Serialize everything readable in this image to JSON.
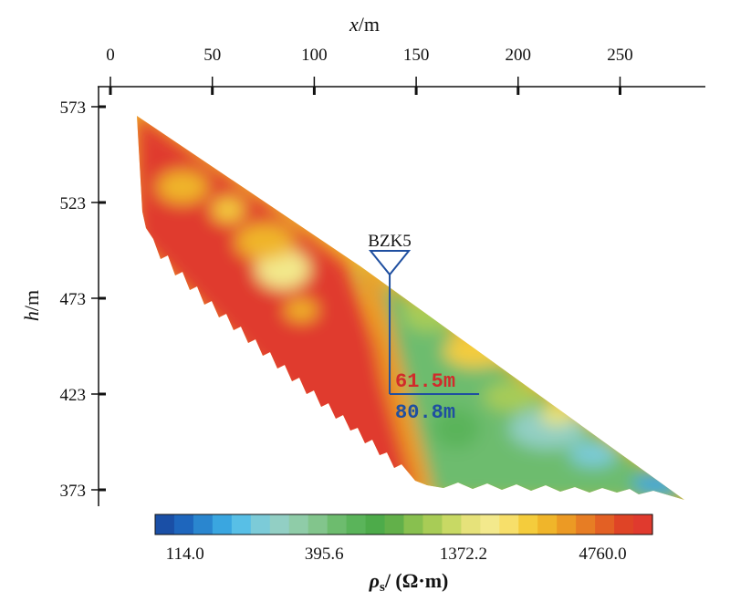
{
  "chart_data": {
    "type": "heatmap",
    "xlabel_var": "x",
    "xlabel_unit": "/m",
    "ylabel_var": "h",
    "ylabel_unit": "/m",
    "x_ticks": [
      0,
      50,
      100,
      150,
      200,
      250
    ],
    "y_ticks": [
      573,
      523,
      473,
      423,
      373
    ],
    "xlim": [
      0,
      290
    ],
    "ylim": [
      365,
      585
    ],
    "colorbar": {
      "tick_labels": [
        "114.0",
        "395.6",
        "1372.2",
        "4760.0"
      ],
      "label_symbol": "ρ",
      "label_sub": "s",
      "label_unit": "/ (Ω·m)",
      "colors": [
        "#1a4fa6",
        "#1e66bd",
        "#2a86cf",
        "#3aa6e0",
        "#58bfe6",
        "#7ccbd8",
        "#92cfc4",
        "#8fcca8",
        "#82c58c",
        "#6dbc6e",
        "#5ab45a",
        "#4dab4a",
        "#62b04a",
        "#88c04f",
        "#a8cc56",
        "#c8d964",
        "#e6e27a",
        "#f3e98c",
        "#f7df6a",
        "#f4cc3c",
        "#f0b52a",
        "#ec9a24",
        "#e77d24",
        "#e36024",
        "#df4426",
        "#e03a2e"
      ]
    },
    "borehole": {
      "label": "BZK5",
      "x": 137,
      "top_h": 493,
      "bottom_h": 423,
      "depth_upper": "61.5m",
      "depth_lower": "80.8m"
    }
  }
}
